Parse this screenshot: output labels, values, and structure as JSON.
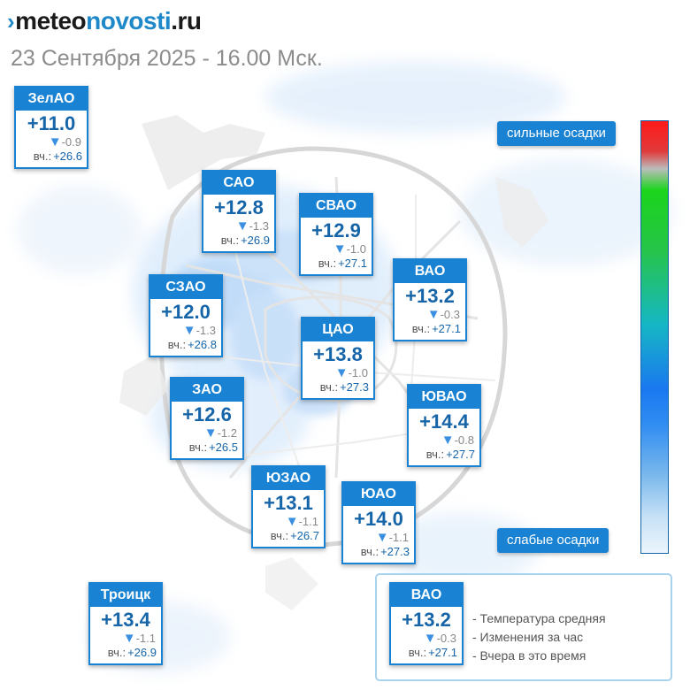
{
  "header": {
    "logo_part1": "meteo",
    "logo_part2": "novosti",
    "logo_part3": ".ru",
    "datetime": "23 Сентября 2025 - 16.00 Мск."
  },
  "labels": {
    "yesterday_prefix": "вч.:"
  },
  "districts": [
    {
      "name": "ЗелАО",
      "temp": "+11.0",
      "change": "-0.9",
      "yesterday": "+26.6"
    },
    {
      "name": "САО",
      "temp": "+12.8",
      "change": "-1.3",
      "yesterday": "+26.9"
    },
    {
      "name": "СВАО",
      "temp": "+12.9",
      "change": "-1.0",
      "yesterday": "+27.1"
    },
    {
      "name": "ВАО",
      "temp": "+13.2",
      "change": "-0.3",
      "yesterday": "+27.1"
    },
    {
      "name": "СЗАО",
      "temp": "+12.0",
      "change": "-1.3",
      "yesterday": "+26.8"
    },
    {
      "name": "ЦАО",
      "temp": "+13.8",
      "change": "-1.0",
      "yesterday": "+27.3"
    },
    {
      "name": "ЗАО",
      "temp": "+12.6",
      "change": "-1.2",
      "yesterday": "+26.5"
    },
    {
      "name": "ЮВАО",
      "temp": "+14.4",
      "change": "-0.8",
      "yesterday": "+27.7"
    },
    {
      "name": "ЮЗАО",
      "temp": "+13.1",
      "change": "-1.1",
      "yesterday": "+26.7"
    },
    {
      "name": "ЮАО",
      "temp": "+14.0",
      "change": "-1.1",
      "yesterday": "+27.3"
    },
    {
      "name": "Троицк",
      "temp": "+13.4",
      "change": "-1.1",
      "yesterday": "+26.9"
    }
  ],
  "scale": {
    "heavy_label": "сильные осадки",
    "light_label": "слабые осадки"
  },
  "legend": {
    "sample": {
      "name": "ВАО",
      "temp": "+13.2",
      "change": "-0.3",
      "yesterday": "+27.1"
    },
    "items": [
      "- Температура средняя",
      "- Изменения за час",
      "- Вчера в это время"
    ]
  },
  "colors": {
    "card_header": "#1a82d2",
    "temperature_text": "#1565a8",
    "change_arrow": "#3a8fe0",
    "scale_top": "#ff1a1a",
    "scale_bottom": "#ebf5fc"
  }
}
